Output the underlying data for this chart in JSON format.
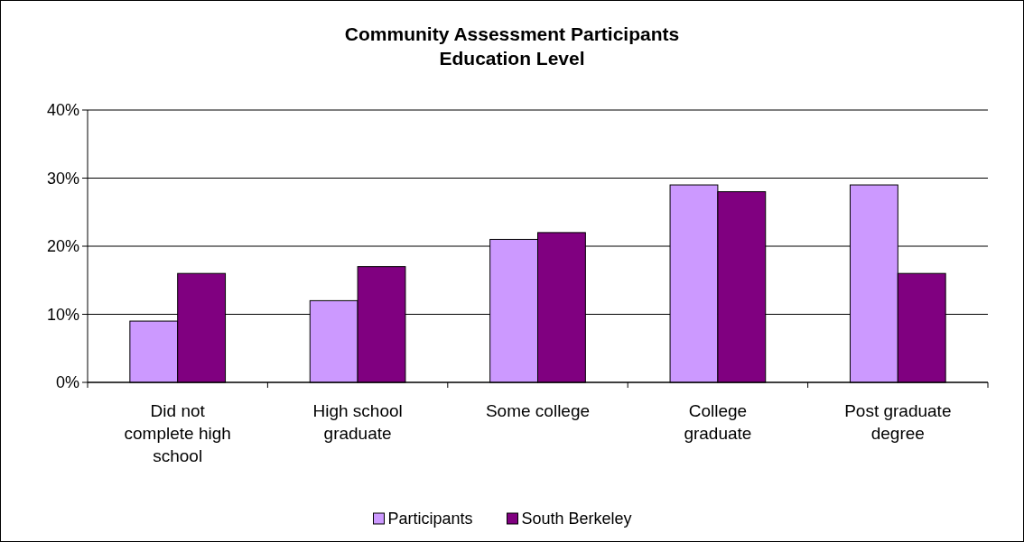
{
  "chart_data": {
    "type": "bar",
    "title": "Community Assessment Participants\nEducation Level",
    "categories": [
      "Did not complete high school",
      "High school graduate",
      "Some college",
      "College graduate",
      "Post graduate degree"
    ],
    "series": [
      {
        "name": "Participants",
        "color": "#cc99ff",
        "values": [
          9,
          12,
          21,
          29,
          29
        ]
      },
      {
        "name": "South Berkeley",
        "color": "#800080",
        "values": [
          16,
          17,
          22,
          28,
          16
        ]
      }
    ],
    "ylim": [
      0,
      40
    ],
    "yticks": [
      {
        "value": 0,
        "label": "0%"
      },
      {
        "value": 10,
        "label": "10%"
      },
      {
        "value": 20,
        "label": "20%"
      },
      {
        "value": 30,
        "label": "30%"
      },
      {
        "value": 40,
        "label": "40%"
      }
    ],
    "grid": "y",
    "legend": "bottom"
  }
}
